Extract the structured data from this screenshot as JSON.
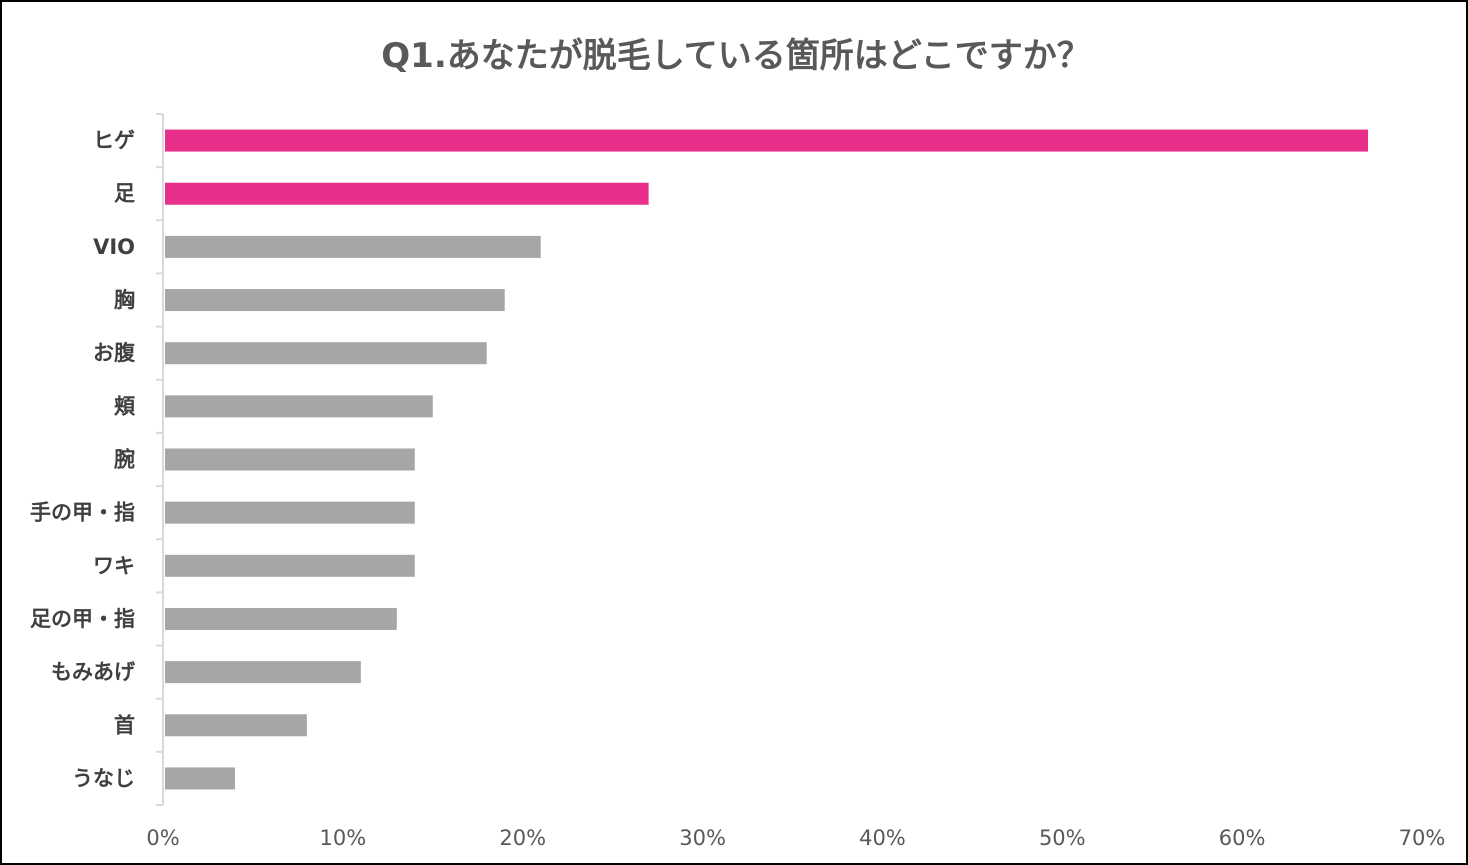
{
  "chart_data": {
    "type": "bar",
    "orientation": "horizontal",
    "title": "Q1.あなたが脱毛している箇所はどこですか？",
    "xlabel": "",
    "ylabel": "",
    "categories": [
      "ヒゲ",
      "足",
      "VIO",
      "胸",
      "お腹",
      "頬",
      "腕",
      "手の甲・指",
      "ワキ",
      "足の甲・指",
      "もみあげ",
      "首",
      "うなじ"
    ],
    "values": [
      67,
      27,
      21,
      19,
      18,
      15,
      14,
      14,
      14,
      13,
      11,
      8,
      4
    ],
    "highlight_count": 2,
    "colors": {
      "highlight": "#E8308A",
      "default": "#A6A6A6",
      "axis": "#D9D9D9"
    },
    "xlim": [
      0,
      70
    ],
    "xticks": [
      0,
      10,
      20,
      30,
      40,
      50,
      60,
      70
    ],
    "xtick_labels": [
      "0%",
      "10%",
      "20%",
      "30%",
      "40%",
      "50%",
      "60%",
      "70%"
    ],
    "grid": false,
    "legend": "none"
  }
}
